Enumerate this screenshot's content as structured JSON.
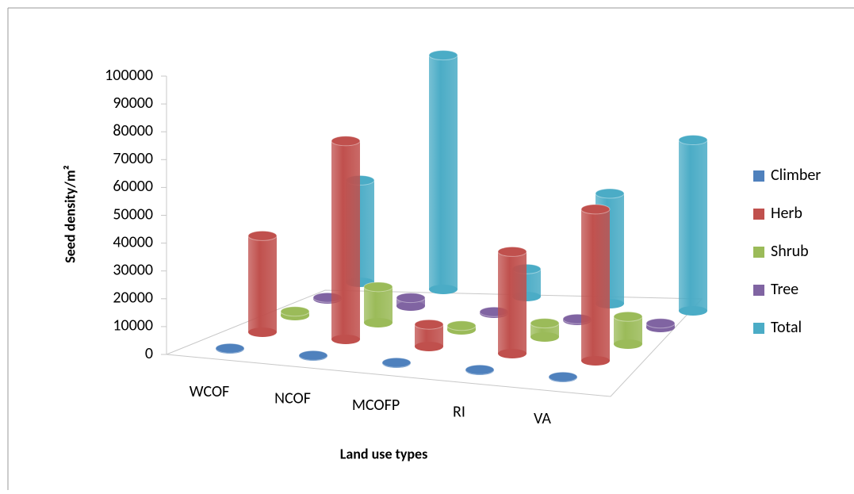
{
  "chart_data": {
    "type": "bar3d",
    "y_label": "Seed density/m²",
    "x_label": "Land use types",
    "categories": [
      "WCOF",
      "NCOF",
      "MCOFP",
      "RI",
      "VA"
    ],
    "series": [
      {
        "name": "Climber",
        "color": "#4f81bd",
        "values": [
          200,
          200,
          200,
          200,
          200
        ]
      },
      {
        "name": "Herb",
        "color": "#c0504d",
        "values": [
          35000,
          72000,
          8000,
          37000,
          55000
        ]
      },
      {
        "name": "Shrub",
        "color": "#9bbb59",
        "values": [
          1500,
          13000,
          1500,
          5000,
          10000
        ]
      },
      {
        "name": "Tree",
        "color": "#8064a2",
        "values": [
          500,
          3000,
          500,
          500,
          1500
        ]
      },
      {
        "name": "Total",
        "color": "#4bacc6",
        "values": [
          37000,
          85000,
          10000,
          40000,
          62000
        ]
      }
    ],
    "ylim": [
      0,
      100000
    ],
    "yticks": [
      0,
      10000,
      20000,
      30000,
      40000,
      50000,
      60000,
      70000,
      80000,
      90000,
      100000
    ],
    "legend": "right"
  }
}
